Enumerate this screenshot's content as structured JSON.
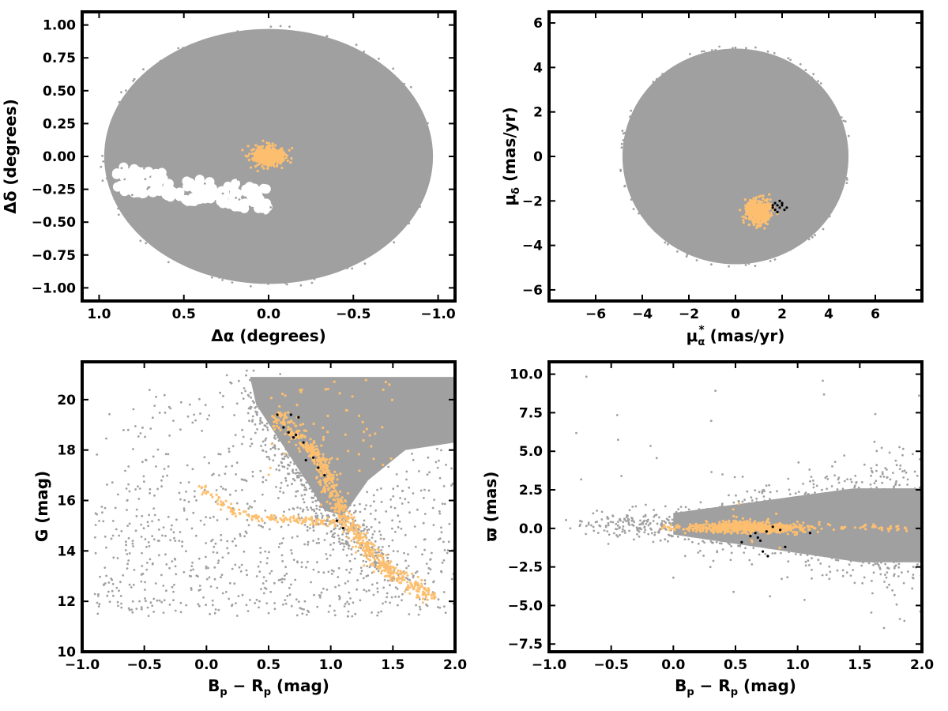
{
  "colors": {
    "field": "#a0a0a0",
    "members": "#fdbf6f",
    "highlight": "#000000"
  },
  "chart_data": [
    {
      "id": "sky",
      "type": "scatter",
      "xlabel_main": "Δα",
      "xlabel_unit": "(degrees)",
      "ylabel_main": "Δδ",
      "ylabel_unit": "(degrees)",
      "xlim": [
        1.1,
        -1.1
      ],
      "ylim": [
        -1.1,
        1.1
      ],
      "x_ticks": [
        1.0,
        0.5,
        0.0,
        -0.5,
        -1.0
      ],
      "x_tick_labels": [
        "1.0",
        "0.5",
        "0.0",
        "−0.5",
        "−1.0"
      ],
      "y_ticks": [
        1.0,
        0.75,
        0.5,
        0.25,
        0.0,
        -0.25,
        -0.5,
        -0.75,
        -1.0
      ],
      "y_tick_labels": [
        "1.00",
        "0.75",
        "0.50",
        "0.25",
        "0.00",
        "−0.25",
        "−0.50",
        "−0.75",
        "−1.00"
      ],
      "field": {
        "shape": "disk",
        "center": [
          0,
          0
        ],
        "radius": 1.0,
        "gap": {
          "center": [
            0.45,
            -0.25
          ],
          "rx": 0.5,
          "ry": 0.12
        }
      },
      "members": {
        "center": [
          0.0,
          0.0
        ],
        "spread": [
          0.045,
          0.035
        ],
        "count": 500
      },
      "highlight": []
    },
    {
      "id": "proper-motion",
      "type": "scatter",
      "xlabel_main": "μ",
      "xlabel_sub": "α",
      "xlabel_sup": "*",
      "xlabel_unit": " (mas/yr)",
      "ylabel_main": "μ",
      "ylabel_sub": "δ",
      "ylabel_unit": " (mas/yr)",
      "xlim": [
        -8.0,
        8.0
      ],
      "ylim": [
        -6.5,
        6.5
      ],
      "x_ticks": [
        -6,
        -4,
        -2,
        0,
        2,
        4,
        6
      ],
      "x_tick_labels": [
        "−6",
        "−4",
        "−2",
        "0",
        "2",
        "4",
        "6"
      ],
      "y_ticks": [
        6,
        4,
        2,
        0,
        -2,
        -4,
        -6
      ],
      "y_tick_labels": [
        "6",
        "4",
        "2",
        "0",
        "−2",
        "−4",
        "−6"
      ],
      "field": {
        "shape": "disk",
        "center": [
          0,
          0
        ],
        "radius": 5.0
      },
      "members": {
        "center": [
          1.0,
          -2.5
        ],
        "spread": [
          0.28,
          0.28
        ],
        "count": 500
      },
      "highlight": [
        [
          1.6,
          -2.3
        ],
        [
          1.7,
          -2.1
        ],
        [
          1.8,
          -2.2
        ],
        [
          1.9,
          -2.0
        ],
        [
          2.0,
          -2.2
        ],
        [
          2.1,
          -2.4
        ],
        [
          1.7,
          -2.4
        ],
        [
          1.9,
          -2.3
        ],
        [
          2.2,
          -2.3
        ],
        [
          1.8,
          -2.5
        ],
        [
          2.0,
          -2.1
        ],
        [
          1.6,
          -2.2
        ]
      ]
    },
    {
      "id": "cmd",
      "type": "scatter",
      "xlabel_main": "B",
      "xlabel_sub": "p",
      "xlabel_mid": " − R",
      "xlabel_sub2": "p",
      "xlabel_unit": " (mag)",
      "ylabel_main": "G (mag)",
      "xlim": [
        -1.0,
        2.0
      ],
      "ylim": [
        10.0,
        21.5
      ],
      "x_ticks": [
        -1.0,
        -0.5,
        0.0,
        0.5,
        1.0,
        1.5,
        2.0
      ],
      "x_tick_labels": [
        "−1.0",
        "−0.5",
        "0.0",
        "0.5",
        "1.0",
        "1.5",
        "2.0"
      ],
      "y_ticks": [
        20,
        18,
        16,
        14,
        12,
        10
      ],
      "y_tick_labels": [
        "20",
        "18",
        "16",
        "14",
        "12",
        "10"
      ],
      "sequences": {
        "field_ridge": [
          [
            0.35,
            20.8
          ],
          [
            0.6,
            18.5
          ],
          [
            0.8,
            17.5
          ],
          [
            0.9,
            16.5
          ],
          [
            1.0,
            15.5
          ],
          [
            1.2,
            14.5
          ],
          [
            1.45,
            13.0
          ]
        ],
        "member_ms": [
          [
            0.55,
            19.5
          ],
          [
            0.75,
            18.5
          ],
          [
            0.88,
            17.8
          ],
          [
            0.98,
            17.0
          ],
          [
            1.05,
            16.0
          ],
          [
            1.12,
            15.2
          ],
          [
            1.25,
            14.3
          ],
          [
            1.4,
            13.5
          ],
          [
            1.55,
            12.9
          ],
          [
            1.8,
            12.2
          ]
        ],
        "member_hb": [
          [
            -0.05,
            16.5
          ],
          [
            0.1,
            16.0
          ],
          [
            0.25,
            15.5
          ],
          [
            0.45,
            15.3
          ],
          [
            0.7,
            15.25
          ],
          [
            0.9,
            15.2
          ],
          [
            1.05,
            15.1
          ]
        ]
      },
      "highlight": [
        [
          0.57,
          19.4
        ],
        [
          0.62,
          18.9
        ],
        [
          0.66,
          18.7
        ],
        [
          0.7,
          18.5
        ],
        [
          0.74,
          19.3
        ],
        [
          0.78,
          18.3
        ],
        [
          0.8,
          17.6
        ],
        [
          0.86,
          17.7
        ],
        [
          0.9,
          17.3
        ],
        [
          0.95,
          17.0
        ],
        [
          1.05,
          15.2
        ],
        [
          1.1,
          14.9
        ],
        [
          0.68,
          19.4
        ],
        [
          0.72,
          18.6
        ]
      ]
    },
    {
      "id": "parallax",
      "type": "scatter",
      "xlabel_main": "B",
      "xlabel_sub": "p",
      "xlabel_mid": " − R",
      "xlabel_sub2": "p",
      "xlabel_unit": " (mag)",
      "ylabel_main": "ϖ (mas)",
      "xlim": [
        -1.0,
        2.0
      ],
      "ylim": [
        -8.0,
        10.8
      ],
      "x_ticks": [
        -1.0,
        -0.5,
        0.0,
        0.5,
        1.0,
        1.5,
        2.0
      ],
      "x_tick_labels": [
        "−1.0",
        "−0.5",
        "0.0",
        "0.5",
        "1.0",
        "1.5",
        "2.0"
      ],
      "y_ticks": [
        10.0,
        7.5,
        5.0,
        2.5,
        0.0,
        -2.5,
        -5.0,
        -7.5
      ],
      "y_tick_labels": [
        "10.0",
        "7.5",
        "5.0",
        "2.5",
        "0.0",
        "−2.5",
        "−5.0",
        "−7.5"
      ],
      "highlight": [
        [
          0.55,
          -0.9
        ],
        [
          0.62,
          -0.5
        ],
        [
          0.66,
          -0.3
        ],
        [
          0.7,
          -0.8
        ],
        [
          0.72,
          -1.5
        ],
        [
          0.76,
          -1.8
        ],
        [
          0.75,
          -0.2
        ],
        [
          0.8,
          0.1
        ],
        [
          0.86,
          -0.1
        ],
        [
          0.9,
          -1.2
        ],
        [
          1.1,
          -0.3
        ],
        [
          0.68,
          -0.6
        ]
      ]
    }
  ]
}
